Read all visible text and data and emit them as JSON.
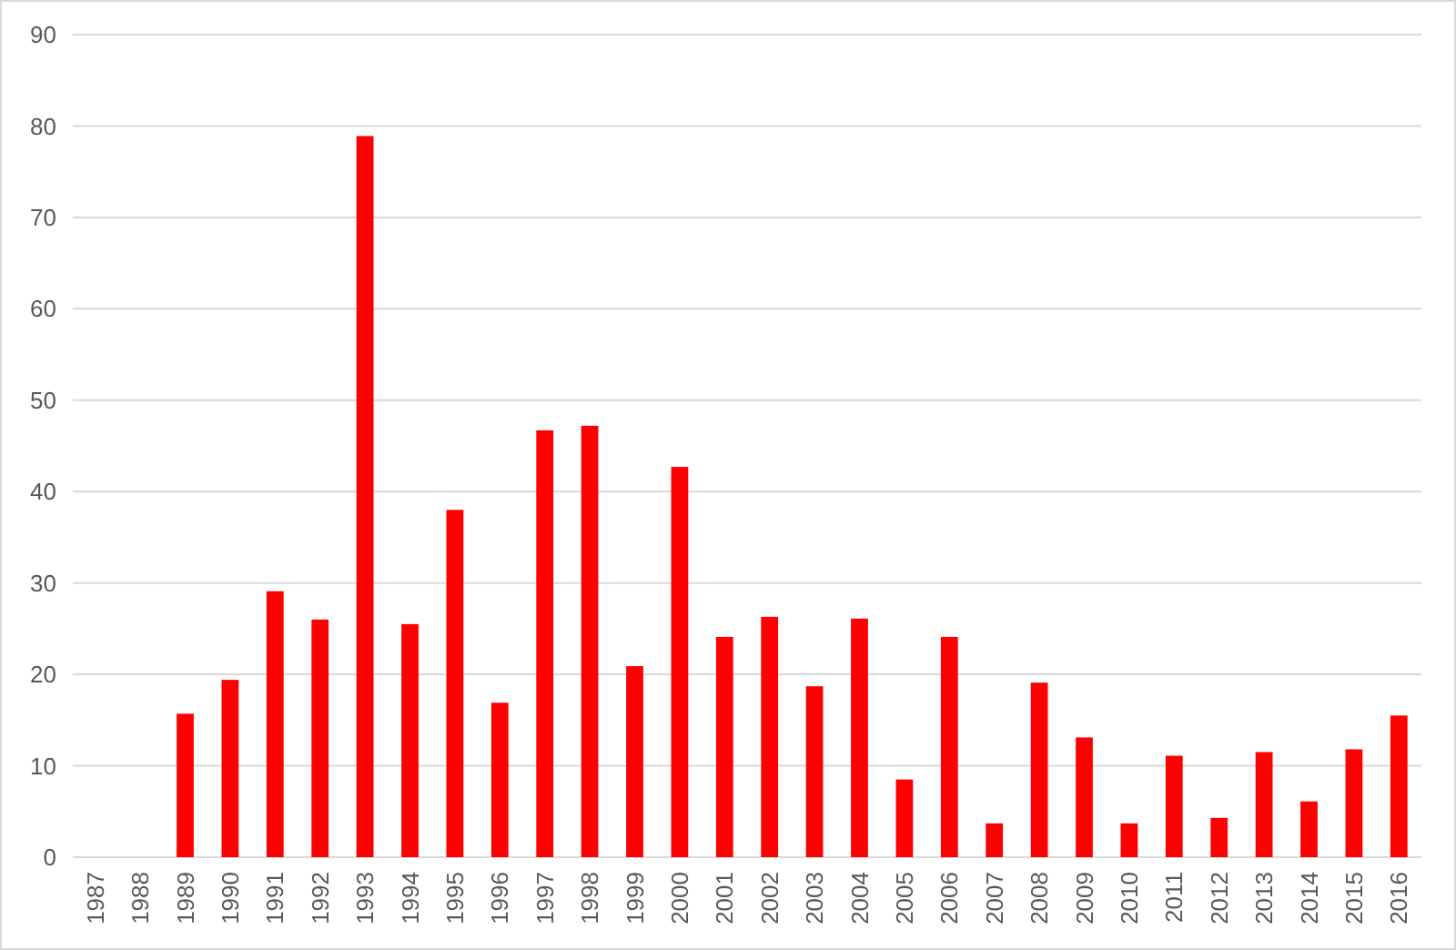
{
  "chart_data": {
    "type": "bar",
    "categories": [
      "1987",
      "1988",
      "1989",
      "1990",
      "1991",
      "1992",
      "1993",
      "1994",
      "1995",
      "1996",
      "1997",
      "1998",
      "1999",
      "2000",
      "2001",
      "2002",
      "2003",
      "2004",
      "2005",
      "2006",
      "2007",
      "2008",
      "2009",
      "2010",
      "2011",
      "2012",
      "2013",
      "2014",
      "2015",
      "2016"
    ],
    "values": [
      null,
      null,
      15.7,
      19.4,
      29.1,
      26.0,
      78.9,
      25.5,
      38.0,
      16.9,
      46.7,
      47.2,
      20.9,
      42.7,
      24.1,
      26.3,
      18.7,
      26.1,
      8.5,
      24.1,
      3.7,
      19.1,
      13.1,
      3.7,
      11.1,
      4.3,
      11.5,
      6.1,
      11.8,
      15.5
    ],
    "color": "#ff0000",
    "ylim": [
      0,
      90
    ],
    "yticks": [
      0,
      10,
      20,
      30,
      40,
      50,
      60,
      70,
      80,
      90
    ],
    "grid": "y"
  }
}
